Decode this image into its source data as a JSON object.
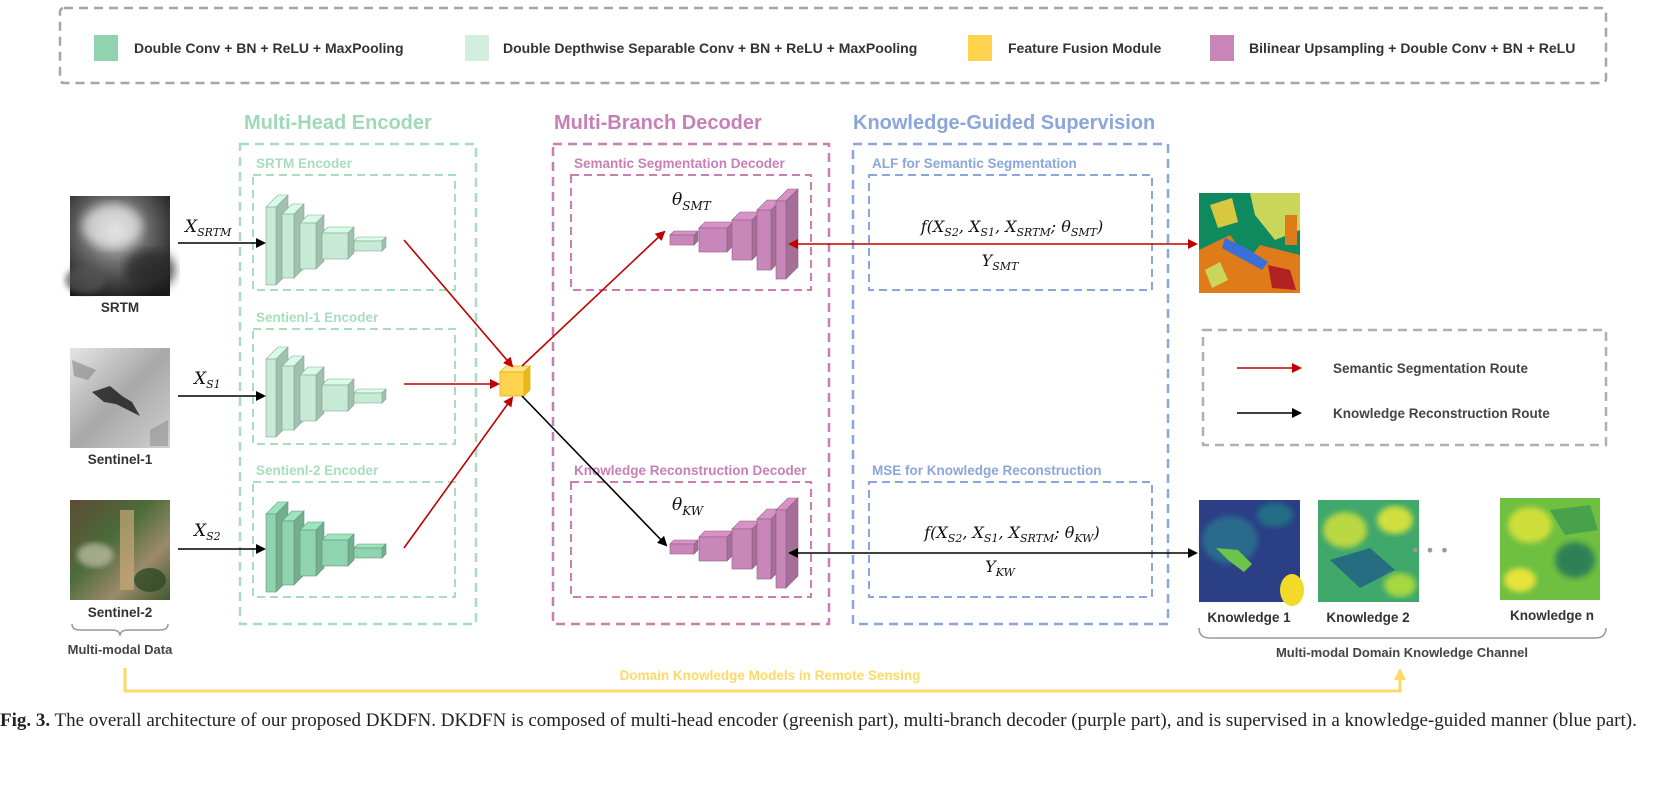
{
  "legend": {
    "items": [
      {
        "label": "Double Conv + BN + ReLU + MaxPooling",
        "color": "#8fd4ae"
      },
      {
        "label": "Double Depthwise Separable Conv + BN + ReLU + MaxPooling",
        "color": "#d3eedf"
      },
      {
        "label": "Feature Fusion Module",
        "color": "#ffd34d"
      },
      {
        "label": "Bilinear Upsampling + Double Conv + BN + ReLU",
        "color": "#c987b9"
      }
    ]
  },
  "sections": {
    "encoder": {
      "title": "Multi-Head Encoder",
      "color": "#9fd9b5"
    },
    "decoder": {
      "title": "Multi-Branch Decoder",
      "color": "#c77fb6"
    },
    "supervision": {
      "title": "Knowledge-Guided Supervision",
      "color": "#8aa6db"
    }
  },
  "encoders": {
    "srtm": "SRTM Encoder",
    "s1": "Sentienl-1 Encoder",
    "s2": "Sentienl-2 Encoder"
  },
  "decoders": {
    "semantic": "Semantic Segmentation Decoder",
    "knowledge": "Knowledge Reconstruction Decoder"
  },
  "supervision": {
    "alf": "ALF for Semantic Segmentation",
    "mse": "MSE for Knowledge Reconstruction"
  },
  "inputs": {
    "srtm": {
      "label": "SRTM",
      "sub": "SRTM"
    },
    "s1": {
      "label": "Sentinel-1",
      "sub": "S1"
    },
    "s2": {
      "label": "Sentinel-2",
      "sub": "S2"
    },
    "var": "X",
    "group_label": "Multi-modal Data"
  },
  "math": {
    "theta": "θ",
    "smt": "SMT",
    "kw": "KW",
    "y": "Y",
    "func_smt": {
      "pre": "f(X",
      "s2": "S2",
      "s1": "S1",
      "srtm": "SRTM",
      "smt": "SMT"
    },
    "func_kw": {
      "pre": "f(X",
      "s2": "S2",
      "s1": "S1",
      "srtm": "SRTM",
      "kw": "KW"
    }
  },
  "routes": {
    "semantic": "Semantic Segmentation Route",
    "knowledge": "Knowledge Reconstruction Route",
    "semantic_color": "#c00000",
    "knowledge_color": "#000000"
  },
  "knowledge": {
    "items": [
      "Knowledge 1",
      "Knowledge 2",
      "Knowledge n"
    ],
    "ellipsis": "• • •",
    "channel_label": "Multi-modal Domain Knowledge Channel"
  },
  "domain_route": {
    "label": "Domain Knowledge Models in Remote Sensing",
    "color": "#ffd966"
  },
  "caption": {
    "prefix": "Fig. 3.",
    "text": " The overall architecture of our proposed DKDFN. DKDFN is composed of multi-head encoder (greenish part), multi-branch decoder (purple part), and is supervised in a knowledge-guided manner (blue part)."
  }
}
